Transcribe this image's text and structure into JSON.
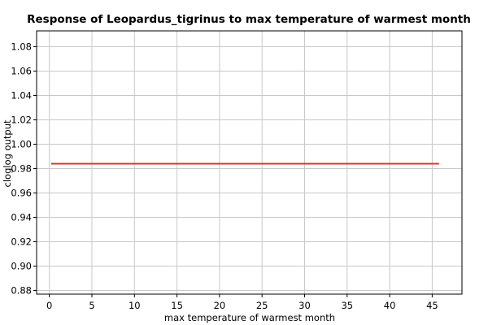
{
  "chart_data": {
    "type": "line",
    "title": "Response of Leopardus_tigrinus to max temperature of warmest month",
    "xlabel": "max temperature of warmest month",
    "ylabel": "cloglog output",
    "xlim": [
      -1.5,
      48.5
    ],
    "ylim": [
      0.877,
      1.093
    ],
    "xticks": [
      0,
      5,
      10,
      15,
      20,
      25,
      30,
      35,
      40,
      45
    ],
    "yticks": [
      0.88,
      0.9,
      0.92,
      0.94,
      0.96,
      0.98,
      1.0,
      1.02,
      1.04,
      1.06,
      1.08
    ],
    "xtick_labels": [
      "0",
      "5",
      "10",
      "15",
      "20",
      "25",
      "30",
      "35",
      "40",
      "45"
    ],
    "ytick_labels": [
      "0.88",
      "0.90",
      "0.92",
      "0.94",
      "0.96",
      "0.98",
      "1.00",
      "1.02",
      "1.04",
      "1.06",
      "1.08"
    ],
    "grid": true,
    "series": [
      {
        "color": "#e03030",
        "x": [
          0.2,
          45.8
        ],
        "y": [
          0.984,
          0.984
        ]
      }
    ]
  }
}
